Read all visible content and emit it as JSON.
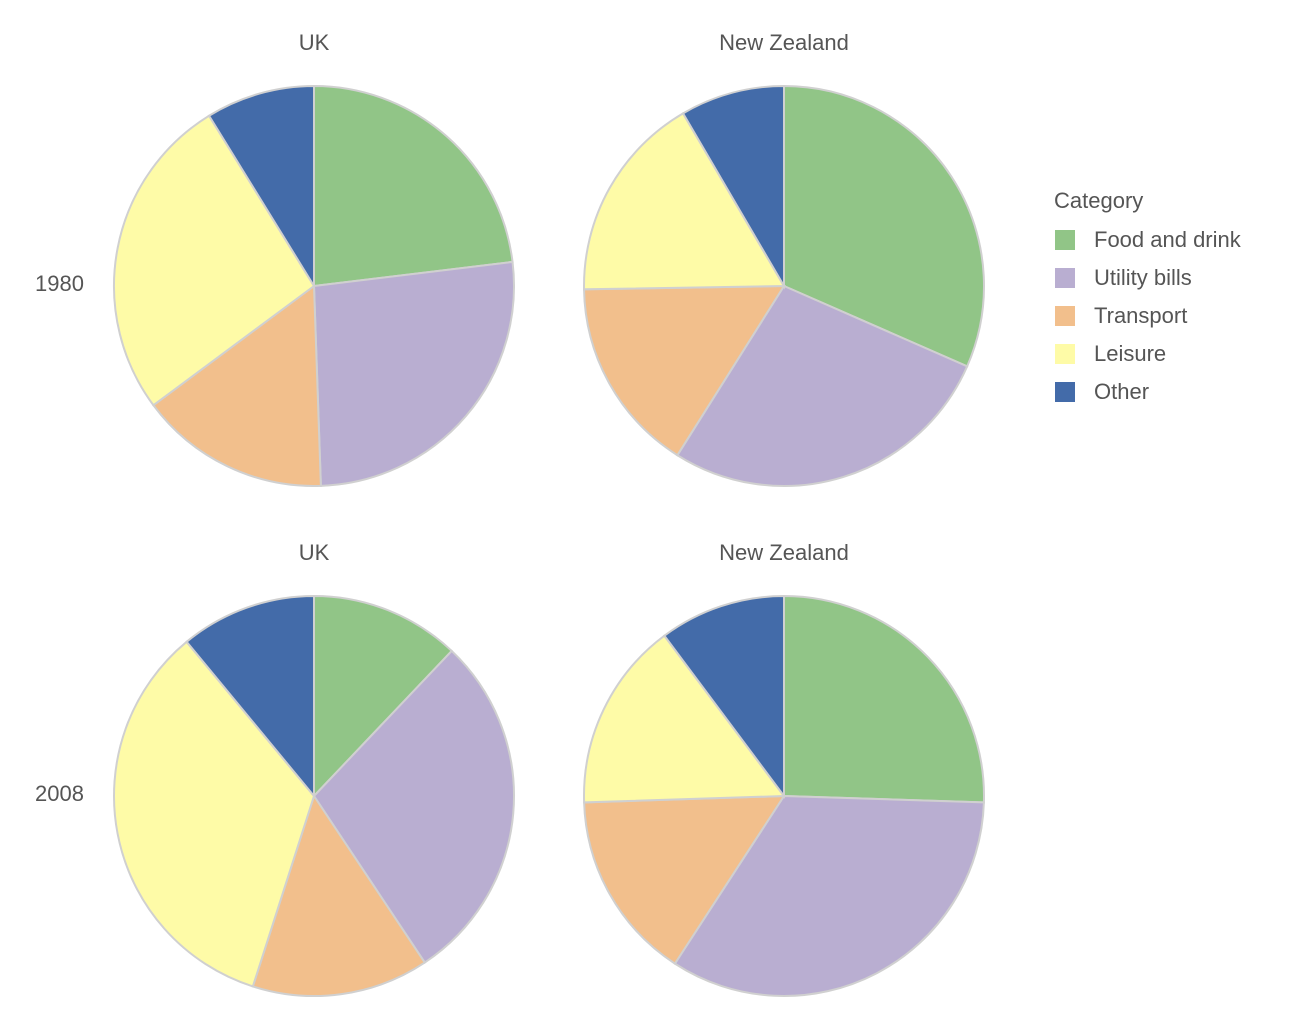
{
  "chart_data": {
    "type": "pie",
    "rows": [
      "1980",
      "2008"
    ],
    "columns": [
      "UK",
      "New Zealand"
    ],
    "legend": {
      "title": "Category",
      "placement": "right",
      "entries": [
        {
          "label": "Food and drink",
          "color": "#91c587"
        },
        {
          "label": "Utility bills",
          "color": "#b9aed1"
        },
        {
          "label": "Transport",
          "color": "#f2bf8c"
        },
        {
          "label": "Leisure",
          "color": "#fefba7"
        },
        {
          "label": "Other",
          "color": "#436ba9"
        }
      ]
    },
    "pies": [
      {
        "row": "1980",
        "title": "UK",
        "values": [
          21,
          24,
          14,
          24,
          8
        ]
      },
      {
        "row": "1980",
        "title": "New Zealand",
        "values": [
          30,
          26,
          15,
          16,
          8
        ]
      },
      {
        "row": "2008",
        "title": "UK",
        "values": [
          11,
          26,
          13,
          31,
          10
        ]
      },
      {
        "row": "2008",
        "title": "New Zealand",
        "values": [
          25,
          33,
          15,
          15,
          10
        ]
      }
    ],
    "start_angle": "12 o'clock",
    "direction": "clockwise"
  }
}
